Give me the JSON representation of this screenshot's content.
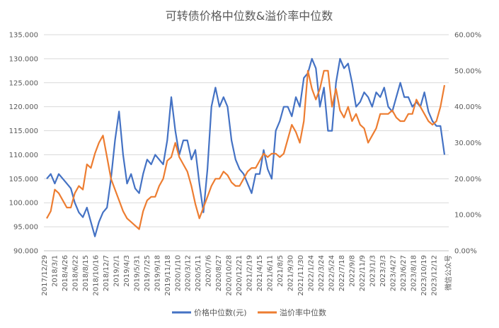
{
  "chart_data": {
    "type": "line",
    "title": "可转债价格中位数&溢价率中位数",
    "watermark": "微信公众号",
    "x_tick_labels": [
      "2017/12/29",
      "2018/3/1",
      "2018/4/26",
      "2018/6/22",
      "2018/8/15",
      "2018/10/16",
      "2018/12/7",
      "2019/2/1",
      "2019/4/3",
      "2019/5/31",
      "2019/7/25",
      "2019/9/18",
      "2019/11/18",
      "2020/1/10",
      "2020/3/12",
      "2020/5/11",
      "2020/7/6",
      "2020/8/27",
      "2020/10/28",
      "2020/12/21",
      "2021/2/19",
      "2021/4/15",
      "2021/6/11",
      "2021/8/5",
      "2021/9/30",
      "2021/11/30",
      "2022/1/24",
      "2022/3/24",
      "2022/5/24",
      "2022/7/18",
      "2022/9/8",
      "2022/11/9",
      "2023/1/3",
      "2023/3/3",
      "2023/4/27",
      "2023/6/27",
      "2023/8/18",
      "2023/10/19",
      "2023/12/12"
    ],
    "y_left": {
      "min": 90,
      "max": 135,
      "step": 5,
      "tick_labels": [
        "90.000",
        "95.000",
        "100.000",
        "105.000",
        "110.000",
        "115.000",
        "120.000",
        "125.000",
        "130.000",
        "135.000"
      ]
    },
    "y_right": {
      "min": 0,
      "max": 60,
      "step": 10,
      "tick_labels": [
        "0.00%",
        "10.00%",
        "20.00%",
        "30.00%",
        "40.00%",
        "50.00%",
        "60.00%"
      ]
    },
    "grid": true,
    "legend_position": "bottom",
    "series": [
      {
        "name": "价格中位数(元)",
        "axis": "left",
        "color": "#4472C4",
        "values": [
          105,
          106,
          104,
          106,
          105,
          104,
          103,
          100,
          98,
          97,
          99,
          96,
          93,
          96,
          98,
          99,
          105,
          113,
          119,
          110,
          104,
          106,
          103,
          102,
          106,
          109,
          108,
          110,
          109,
          108,
          113,
          122,
          115,
          110,
          113,
          113,
          109,
          111,
          104,
          98,
          107,
          120,
          124,
          120,
          122,
          120,
          113,
          109,
          107,
          106,
          104,
          102,
          106,
          106,
          111,
          107,
          105,
          115,
          117,
          120,
          120,
          118,
          122,
          120,
          126,
          127,
          130,
          128,
          120,
          124,
          115,
          115,
          125,
          130,
          128,
          129,
          125,
          120,
          121,
          123,
          122,
          120,
          123,
          122,
          124,
          120,
          119,
          122,
          125,
          122,
          122,
          120,
          121,
          120,
          123,
          119,
          117,
          116,
          116,
          110
        ]
      },
      {
        "name": "溢价率中位数",
        "axis": "right",
        "color": "#ED7D31",
        "values": [
          9,
          11,
          17,
          16,
          14,
          12,
          12,
          16,
          18,
          17,
          24,
          23,
          27,
          30,
          32,
          26,
          20,
          17,
          14,
          11,
          9,
          8,
          7,
          6,
          11,
          14,
          15,
          15,
          18,
          20,
          25,
          26,
          30,
          26,
          24,
          22,
          18,
          13,
          9,
          12,
          15,
          18,
          20,
          20,
          22,
          21,
          19,
          18,
          18,
          20,
          22,
          23,
          23,
          25,
          27,
          26,
          27,
          27,
          26,
          27,
          31,
          35,
          33,
          30,
          36,
          50,
          45,
          42,
          45,
          50,
          50,
          40,
          45,
          39,
          37,
          40,
          36,
          38,
          35,
          34,
          30,
          32,
          34,
          38,
          38,
          38,
          39,
          37,
          36,
          36,
          38,
          38,
          42,
          40,
          38,
          36,
          35,
          36,
          40,
          46
        ]
      }
    ]
  }
}
